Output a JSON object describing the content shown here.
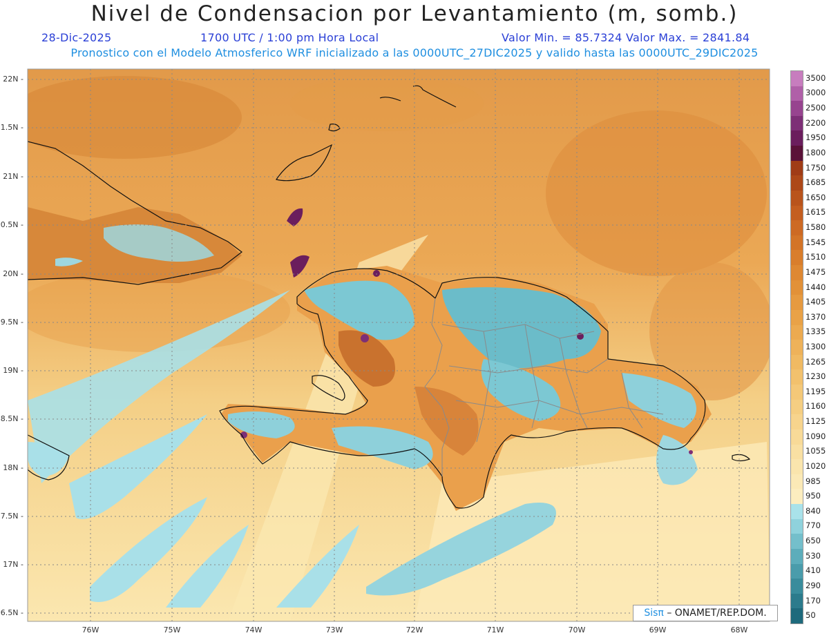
{
  "title": "Nivel de Condensacion por Levantamiento (m, somb.)",
  "date": "28-Dic-2025",
  "time": "1700 UTC / 1:00 pm Hora Local",
  "min_max": "Valor Min. = 85.7324  Valor Max. = 2841.84",
  "forecast_info": "Pronostico con el Modelo Atmosferico WRF inicializado a las 0000UTC_27DIC2025 y valido hasta las  0000UTC_29DIC2025",
  "credit_brand": "Sisπ",
  "credit_org": "– ONAMET/REP.DOM.",
  "lat_labels": [
    "22N",
    "1.5N",
    "21N",
    "0.5N",
    "20N",
    "9.5N",
    "19N",
    "8.5N",
    "18N",
    "7.5N",
    "17N",
    "6.5N"
  ],
  "lon_labels": [
    "76W",
    "75W",
    "74W",
    "73W",
    "72W",
    "71W",
    "70W",
    "69W",
    "68W"
  ],
  "colorbar": {
    "labels": [
      "3500",
      "3000",
      "2500",
      "2200",
      "1950",
      "1800",
      "1750",
      "1685",
      "1650",
      "1615",
      "1580",
      "1545",
      "1510",
      "1475",
      "1440",
      "1405",
      "1370",
      "1335",
      "1300",
      "1265",
      "1230",
      "1195",
      "1160",
      "1125",
      "1090",
      "1055",
      "1020",
      "985",
      "950",
      "840",
      "770",
      "650",
      "530",
      "410",
      "290",
      "170",
      "50"
    ],
    "colors": [
      "#c77dbe",
      "#b060a8",
      "#97448f",
      "#7d2f76",
      "#6b1e5d",
      "#5a1238",
      "#a03c16",
      "#ad4818",
      "#b9541c",
      "#c45e20",
      "#cd6a24",
      "#d37428",
      "#d97e2c",
      "#de8832",
      "#e29138",
      "#e69a40",
      "#e9a247",
      "#ecaa50",
      "#eeb25a",
      "#f0ba63",
      "#f2c16d",
      "#f4c878",
      "#f5ce82",
      "#f7d48d",
      "#f8da98",
      "#f9e0a3",
      "#fae5ad",
      "#fbe9b6",
      "#fcedbf",
      "#a9e2ea",
      "#8fd2dc",
      "#74bfcb",
      "#5dadbb",
      "#4a9cab",
      "#3a8c9c",
      "#2c7b8c",
      "#1e6a7c"
    ]
  }
}
